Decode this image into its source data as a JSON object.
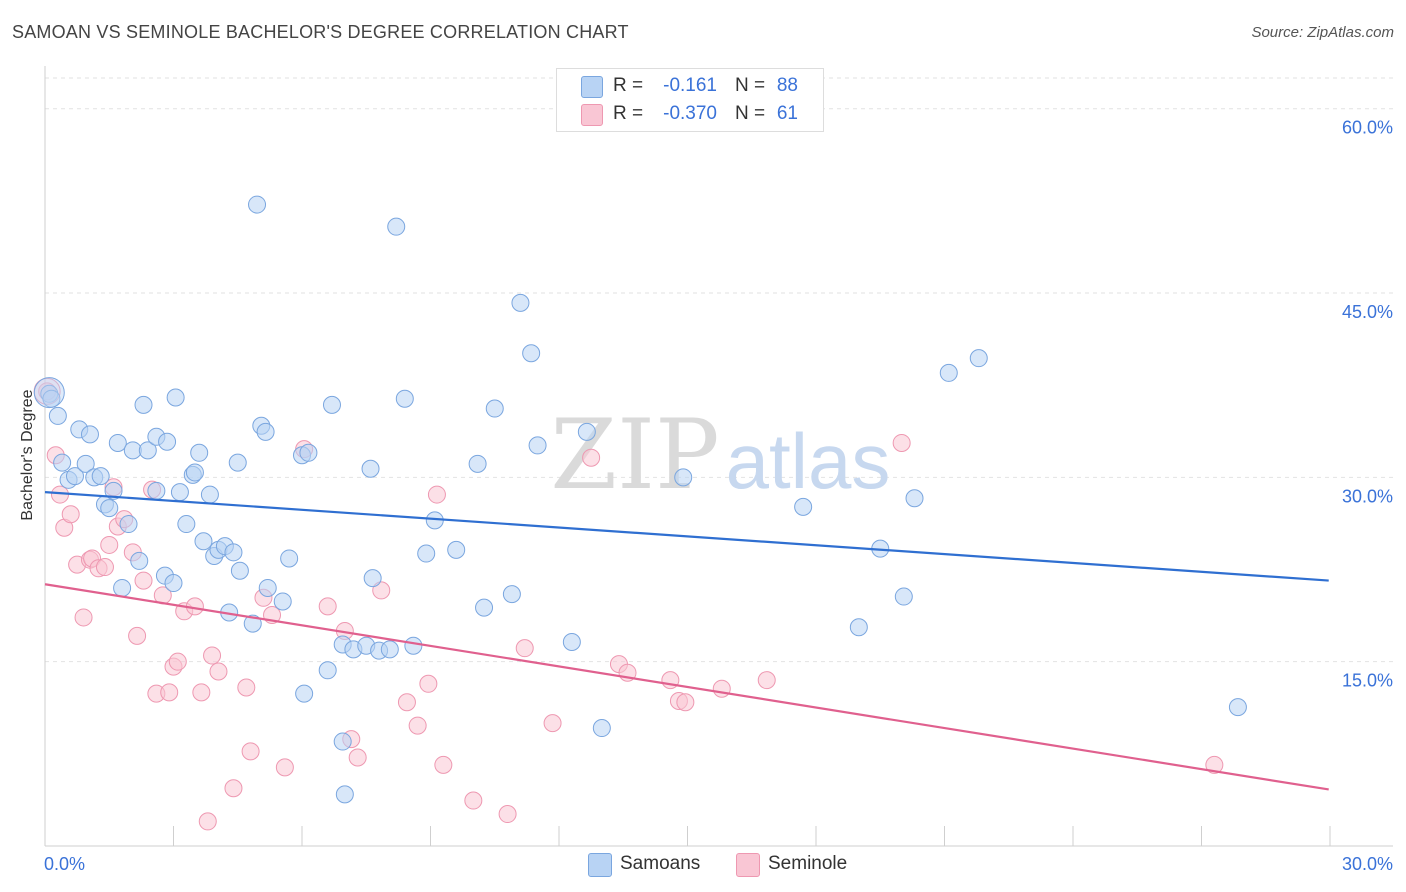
{
  "title": "SAMOAN VS SEMINOLE BACHELOR'S DEGREE CORRELATION CHART",
  "source": "Source: ZipAtlas.com",
  "colors": {
    "samoans_fill": "#b8d3f4",
    "samoans_stroke": "#7aa6df",
    "samoans_line": "#2f6fd1",
    "seminole_fill": "#f9c6d4",
    "seminole_stroke": "#ee98b1",
    "seminole_line": "#e0608e",
    "axis_text": "#3a72d8"
  },
  "legend": {
    "r_label": "R =",
    "n_label": "N =",
    "rows": [
      {
        "r": "-0.161",
        "n": "88"
      },
      {
        "r": "-0.370",
        "n": "61"
      }
    ]
  },
  "watermark": {
    "zip": "ZIP",
    "atlas": "atlas"
  },
  "chart_data": {
    "type": "scatter",
    "title": "SAMOAN VS SEMINOLE BACHELOR'S DEGREE CORRELATION CHART",
    "xlabel": "",
    "ylabel": "Bachelor's Degree",
    "xlim": [
      0,
      30
    ],
    "ylim": [
      0,
      62.5
    ],
    "x_ticks": [
      "0.0%",
      "30.0%"
    ],
    "y_ticks": [
      {
        "value": 15,
        "label": "15.0%"
      },
      {
        "value": 30,
        "label": "30.0%"
      },
      {
        "value": 45,
        "label": "45.0%"
      },
      {
        "value": 60,
        "label": "60.0%"
      }
    ],
    "grid": true,
    "series": [
      {
        "name": "Samoans",
        "r": -0.161,
        "n": 88,
        "trend": {
          "x": [
            0,
            29.97
          ],
          "y": [
            28.8,
            21.6
          ]
        },
        "points": [
          [
            0.1,
            36.8
          ],
          [
            0.15,
            36.4
          ],
          [
            0.3,
            35.0
          ],
          [
            0.4,
            31.2
          ],
          [
            0.55,
            29.8
          ],
          [
            0.7,
            30.1
          ],
          [
            0.8,
            33.9
          ],
          [
            0.95,
            31.1
          ],
          [
            1.05,
            33.5
          ],
          [
            1.15,
            30.0
          ],
          [
            1.3,
            30.1
          ],
          [
            1.4,
            27.8
          ],
          [
            1.5,
            27.5
          ],
          [
            1.6,
            28.9
          ],
          [
            1.7,
            32.8
          ],
          [
            1.8,
            21.0
          ],
          [
            1.95,
            26.2
          ],
          [
            2.05,
            32.2
          ],
          [
            2.2,
            23.2
          ],
          [
            2.3,
            35.9
          ],
          [
            2.4,
            32.2
          ],
          [
            2.6,
            28.9
          ],
          [
            2.6,
            33.3
          ],
          [
            2.8,
            22.0
          ],
          [
            2.85,
            32.9
          ],
          [
            3.0,
            21.4
          ],
          [
            3.05,
            36.5
          ],
          [
            3.15,
            28.8
          ],
          [
            3.3,
            26.2
          ],
          [
            3.45,
            30.2
          ],
          [
            3.5,
            30.4
          ],
          [
            3.6,
            32.0
          ],
          [
            3.7,
            24.8
          ],
          [
            3.85,
            28.6
          ],
          [
            3.95,
            23.6
          ],
          [
            4.05,
            24.1
          ],
          [
            4.2,
            24.4
          ],
          [
            4.3,
            19.0
          ],
          [
            4.4,
            23.9
          ],
          [
            4.5,
            31.2
          ],
          [
            4.55,
            22.4
          ],
          [
            4.85,
            18.1
          ],
          [
            4.95,
            52.2
          ],
          [
            5.05,
            34.2
          ],
          [
            5.15,
            33.7
          ],
          [
            5.2,
            21.0
          ],
          [
            5.55,
            19.9
          ],
          [
            5.7,
            23.4
          ],
          [
            6.0,
            31.8
          ],
          [
            6.05,
            12.4
          ],
          [
            6.15,
            32.0
          ],
          [
            6.6,
            14.3
          ],
          [
            6.7,
            35.9
          ],
          [
            6.95,
            16.4
          ],
          [
            6.95,
            8.5
          ],
          [
            7.0,
            4.2
          ],
          [
            7.2,
            16.0
          ],
          [
            7.5,
            16.3
          ],
          [
            7.6,
            30.7
          ],
          [
            7.65,
            21.8
          ],
          [
            7.8,
            15.9
          ],
          [
            8.05,
            16.0
          ],
          [
            8.2,
            50.4
          ],
          [
            8.4,
            36.4
          ],
          [
            8.6,
            16.3
          ],
          [
            8.9,
            23.8
          ],
          [
            9.1,
            26.5
          ],
          [
            9.6,
            24.1
          ],
          [
            10.1,
            31.1
          ],
          [
            10.25,
            19.4
          ],
          [
            10.5,
            35.6
          ],
          [
            10.9,
            20.5
          ],
          [
            11.1,
            44.2
          ],
          [
            11.35,
            40.1
          ],
          [
            11.5,
            32.6
          ],
          [
            12.3,
            16.6
          ],
          [
            12.65,
            33.7
          ],
          [
            13.0,
            9.6
          ],
          [
            14.9,
            30.0
          ],
          [
            17.7,
            27.6
          ],
          [
            19.0,
            17.8
          ],
          [
            19.5,
            24.2
          ],
          [
            20.05,
            20.3
          ],
          [
            20.3,
            28.3
          ],
          [
            21.1,
            38.5
          ],
          [
            21.8,
            39.7
          ],
          [
            27.85,
            11.3
          ]
        ]
      },
      {
        "name": "Seminole",
        "r": -0.37,
        "n": 61,
        "trend": {
          "x": [
            0,
            29.97
          ],
          "y": [
            21.3,
            4.6
          ]
        },
        "points": [
          [
            0.05,
            37.0
          ],
          [
            0.25,
            31.8
          ],
          [
            0.35,
            28.6
          ],
          [
            0.45,
            25.9
          ],
          [
            0.6,
            27.0
          ],
          [
            0.75,
            22.9
          ],
          [
            0.9,
            18.6
          ],
          [
            1.05,
            23.3
          ],
          [
            1.1,
            23.4
          ],
          [
            1.25,
            22.6
          ],
          [
            1.4,
            22.7
          ],
          [
            1.5,
            24.5
          ],
          [
            1.6,
            29.2
          ],
          [
            1.7,
            26.0
          ],
          [
            1.85,
            26.6
          ],
          [
            2.05,
            23.9
          ],
          [
            2.15,
            17.1
          ],
          [
            2.3,
            21.6
          ],
          [
            2.5,
            29.0
          ],
          [
            2.6,
            12.4
          ],
          [
            2.75,
            20.4
          ],
          [
            2.9,
            12.5
          ],
          [
            3.0,
            14.6
          ],
          [
            3.1,
            15.0
          ],
          [
            3.25,
            19.1
          ],
          [
            3.5,
            19.5
          ],
          [
            3.65,
            12.5
          ],
          [
            3.8,
            2.0
          ],
          [
            3.9,
            15.5
          ],
          [
            4.05,
            14.2
          ],
          [
            4.4,
            4.7
          ],
          [
            4.7,
            12.9
          ],
          [
            4.8,
            7.7
          ],
          [
            5.1,
            20.2
          ],
          [
            5.3,
            18.8
          ],
          [
            5.6,
            6.4
          ],
          [
            6.05,
            32.3
          ],
          [
            6.6,
            19.5
          ],
          [
            7.0,
            17.5
          ],
          [
            7.15,
            8.7
          ],
          [
            7.3,
            7.2
          ],
          [
            7.85,
            20.8
          ],
          [
            8.45,
            11.7
          ],
          [
            8.7,
            9.8
          ],
          [
            8.95,
            13.2
          ],
          [
            9.15,
            28.6
          ],
          [
            9.3,
            6.6
          ],
          [
            10.0,
            3.7
          ],
          [
            10.8,
            2.6
          ],
          [
            11.2,
            16.1
          ],
          [
            11.85,
            10.0
          ],
          [
            12.75,
            31.6
          ],
          [
            13.4,
            14.8
          ],
          [
            13.6,
            14.1
          ],
          [
            14.6,
            13.5
          ],
          [
            14.8,
            11.8
          ],
          [
            14.95,
            11.7
          ],
          [
            15.8,
            12.8
          ],
          [
            16.85,
            13.5
          ],
          [
            20.0,
            32.8
          ],
          [
            27.3,
            6.6
          ]
        ]
      }
    ]
  }
}
